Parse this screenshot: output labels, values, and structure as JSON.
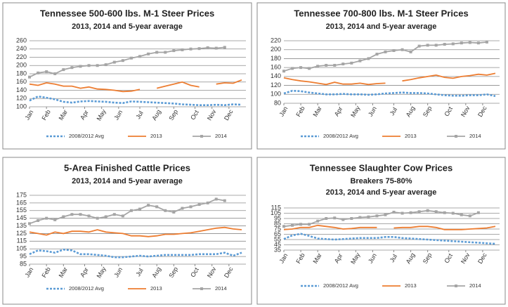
{
  "chart_data": [
    {
      "type": "line",
      "title": "Tennessee 500-600 lbs. M-1 Steer Prices",
      "subtitle": [
        "2013, 2014 and 5-year average"
      ],
      "x": [
        1,
        3,
        5,
        7,
        9,
        11,
        13,
        15,
        17,
        19,
        21,
        23,
        25,
        27,
        29,
        31,
        33,
        35,
        37,
        39,
        41,
        43,
        45,
        47,
        49,
        51
      ],
      "xlim": [
        1,
        52
      ],
      "xticks": [
        {
          "value": 1,
          "label": "Jan"
        },
        {
          "value": 5,
          "label": "Feb"
        },
        {
          "value": 9,
          "label": "Mar"
        },
        {
          "value": 14,
          "label": "Apr"
        },
        {
          "value": 18,
          "label": "May"
        },
        {
          "value": 22,
          "label": "Jun"
        },
        {
          "value": 27,
          "label": "Jul"
        },
        {
          "value": 31,
          "label": "Aug"
        },
        {
          "value": 35,
          "label": "Sep"
        },
        {
          "value": 40,
          "label": "Oct"
        },
        {
          "value": 44,
          "label": "Nov"
        },
        {
          "value": 48,
          "label": "Dec"
        }
      ],
      "ylim": [
        100,
        260
      ],
      "yticks": [
        100,
        120,
        140,
        160,
        180,
        200,
        220,
        240,
        260
      ],
      "grid": true,
      "series": [
        {
          "name": "2008/2012 Avg",
          "color": "#5b9bd5",
          "dash": true,
          "values": [
            115,
            125,
            122,
            118,
            112,
            110,
            113,
            114,
            113,
            112,
            110,
            109,
            113,
            112,
            111,
            110,
            109,
            108,
            106,
            105,
            104,
            104,
            105,
            104,
            106,
            105
          ]
        },
        {
          "name": "2013",
          "color": "#ed7d31",
          "values": [
            155,
            152,
            158,
            155,
            150,
            150,
            145,
            148,
            143,
            142,
            140,
            137,
            138,
            142,
            null,
            145,
            150,
            155,
            160,
            152,
            148,
            null,
            155,
            158,
            157,
            165
          ]
        },
        {
          "name": "2014",
          "color": "#a5a5a5",
          "marker": "square",
          "values": [
            172,
            182,
            185,
            180,
            190,
            195,
            198,
            200,
            200,
            202,
            208,
            212,
            218,
            222,
            228,
            232,
            232,
            236,
            238,
            240,
            241,
            243,
            242,
            244,
            null,
            null
          ]
        }
      ]
    },
    {
      "type": "line",
      "title": "Tennessee 700-800 lbs. M-1 Steer Prices",
      "subtitle": [
        "2013, 2014 and 5-year average"
      ],
      "x": [
        1,
        3,
        5,
        7,
        9,
        11,
        13,
        15,
        17,
        19,
        21,
        23,
        25,
        27,
        29,
        31,
        33,
        35,
        37,
        39,
        41,
        43,
        45,
        47,
        49,
        51
      ],
      "xlim": [
        1,
        52
      ],
      "xticks": [
        {
          "value": 1,
          "label": "Jan"
        },
        {
          "value": 5,
          "label": "Feb"
        },
        {
          "value": 9,
          "label": "Mar"
        },
        {
          "value": 14,
          "label": "Apr"
        },
        {
          "value": 18,
          "label": "May"
        },
        {
          "value": 22,
          "label": "Jun"
        },
        {
          "value": 27,
          "label": "Jul"
        },
        {
          "value": 31,
          "label": "Aug"
        },
        {
          "value": 35,
          "label": "Sep"
        },
        {
          "value": 40,
          "label": "Oct"
        },
        {
          "value": 44,
          "label": "Nov"
        },
        {
          "value": 48,
          "label": "Dec"
        }
      ],
      "ylim": [
        80,
        220
      ],
      "yticks": [
        80,
        100,
        120,
        140,
        160,
        180,
        200,
        220
      ],
      "grid": true,
      "series": [
        {
          "name": "2008/2012 Avg",
          "color": "#5b9bd5",
          "dash": true,
          "values": [
            102,
            108,
            107,
            104,
            102,
            100,
            100,
            101,
            100,
            100,
            99,
            100,
            102,
            103,
            104,
            103,
            103,
            102,
            100,
            98,
            97,
            97,
            98,
            98,
            100,
            96
          ]
        },
        {
          "name": "2013",
          "color": "#ed7d31",
          "values": [
            137,
            133,
            130,
            128,
            125,
            122,
            127,
            123,
            123,
            125,
            122,
            124,
            125,
            null,
            130,
            133,
            137,
            140,
            143,
            138,
            136,
            140,
            142,
            145,
            143,
            147
          ]
        },
        {
          "name": "2014",
          "color": "#a5a5a5",
          "marker": "square",
          "values": [
            152,
            158,
            160,
            158,
            163,
            165,
            165,
            168,
            170,
            175,
            180,
            190,
            195,
            198,
            200,
            195,
            208,
            210,
            210,
            212,
            213,
            215,
            216,
            215,
            217,
            null
          ]
        }
      ]
    },
    {
      "type": "line",
      "title": "5-Area Finished Cattle Prices",
      "subtitle": [
        "2013, 2014 and 5-year average"
      ],
      "x": [
        1,
        3,
        5,
        7,
        9,
        11,
        13,
        15,
        17,
        19,
        21,
        23,
        25,
        27,
        29,
        31,
        33,
        35,
        37,
        39,
        41,
        43,
        45,
        47,
        49,
        51
      ],
      "xlim": [
        1,
        52
      ],
      "xticks": [
        {
          "value": 1,
          "label": "Jan"
        },
        {
          "value": 5,
          "label": "Feb"
        },
        {
          "value": 9,
          "label": "Mar"
        },
        {
          "value": 14,
          "label": "Apr"
        },
        {
          "value": 18,
          "label": "May"
        },
        {
          "value": 22,
          "label": "Jun"
        },
        {
          "value": 27,
          "label": "Jul"
        },
        {
          "value": 31,
          "label": "Aug"
        },
        {
          "value": 35,
          "label": "Sep"
        },
        {
          "value": 40,
          "label": "Oct"
        },
        {
          "value": 44,
          "label": "Nov"
        },
        {
          "value": 48,
          "label": "Dec"
        }
      ],
      "ylim": [
        85,
        175
      ],
      "yticks": [
        85,
        95,
        105,
        115,
        125,
        135,
        145,
        155,
        165,
        175
      ],
      "grid": true,
      "series": [
        {
          "name": "2008/2012 Avg",
          "color": "#5b9bd5",
          "dash": true,
          "values": [
            98,
            103,
            102,
            100,
            104,
            103,
            98,
            98,
            97,
            96,
            94,
            94,
            95,
            96,
            95,
            96,
            97,
            97,
            97,
            97,
            98,
            98,
            98,
            100,
            96,
            100
          ]
        },
        {
          "name": "2013",
          "color": "#ed7d31",
          "values": [
            127,
            125,
            123,
            127,
            125,
            128,
            128,
            127,
            130,
            127,
            126,
            125,
            122,
            122,
            121,
            122,
            124,
            124,
            125,
            126,
            128,
            130,
            132,
            133,
            131,
            130
          ]
        },
        {
          "name": "2014",
          "color": "#a5a5a5",
          "marker": "square",
          "values": [
            138,
            142,
            145,
            143,
            147,
            150,
            150,
            148,
            145,
            147,
            150,
            148,
            155,
            157,
            162,
            160,
            155,
            153,
            158,
            160,
            163,
            165,
            170,
            168,
            null,
            null
          ]
        }
      ]
    },
    {
      "type": "line",
      "title": "Tennessee Slaughter Cow Prices",
      "subtitle": [
        "Breakers 75-80%",
        "2013, 2014 and 5-year average"
      ],
      "x": [
        1,
        3,
        5,
        7,
        9,
        11,
        13,
        15,
        17,
        19,
        21,
        23,
        25,
        27,
        29,
        31,
        33,
        35,
        37,
        39,
        41,
        43,
        45,
        47,
        49,
        51
      ],
      "xlim": [
        1,
        52
      ],
      "xticks": [
        {
          "value": 1,
          "label": "Jan"
        },
        {
          "value": 5,
          "label": "Feb"
        },
        {
          "value": 9,
          "label": "Mar"
        },
        {
          "value": 14,
          "label": "Apr"
        },
        {
          "value": 18,
          "label": "May"
        },
        {
          "value": 22,
          "label": "Jun"
        },
        {
          "value": 27,
          "label": "Jul"
        },
        {
          "value": 31,
          "label": "Aug"
        },
        {
          "value": 35,
          "label": "Sep"
        },
        {
          "value": 40,
          "label": "Oct"
        },
        {
          "value": 44,
          "label": "Nov"
        },
        {
          "value": 48,
          "label": "Dec"
        }
      ],
      "ylim": [
        35,
        115
      ],
      "yticks": [
        35,
        45,
        55,
        65,
        75,
        85,
        95,
        105,
        115
      ],
      "grid": true,
      "series": [
        {
          "name": "2008/2012 Avg",
          "color": "#5b9bd5",
          "dash": true,
          "values": [
            56,
            63,
            66,
            62,
            57,
            56,
            55,
            56,
            57,
            58,
            58,
            58,
            60,
            60,
            58,
            57,
            56,
            55,
            54,
            53,
            52,
            51,
            50,
            49,
            48,
            47
          ]
        },
        {
          "name": "2013",
          "color": "#ed7d31",
          "values": [
            74,
            75,
            78,
            78,
            82,
            80,
            78,
            75,
            76,
            78,
            78,
            78,
            null,
            77,
            78,
            78,
            80,
            80,
            78,
            74,
            74,
            74,
            75,
            76,
            77,
            80
          ]
        },
        {
          "name": "2014",
          "color": "#a5a5a5",
          "marker": "square",
          "values": [
            80,
            82,
            84,
            84,
            90,
            95,
            96,
            93,
            95,
            97,
            98,
            100,
            102,
            107,
            105,
            106,
            108,
            110,
            108,
            106,
            105,
            102,
            100,
            106,
            null,
            null
          ]
        }
      ]
    }
  ]
}
